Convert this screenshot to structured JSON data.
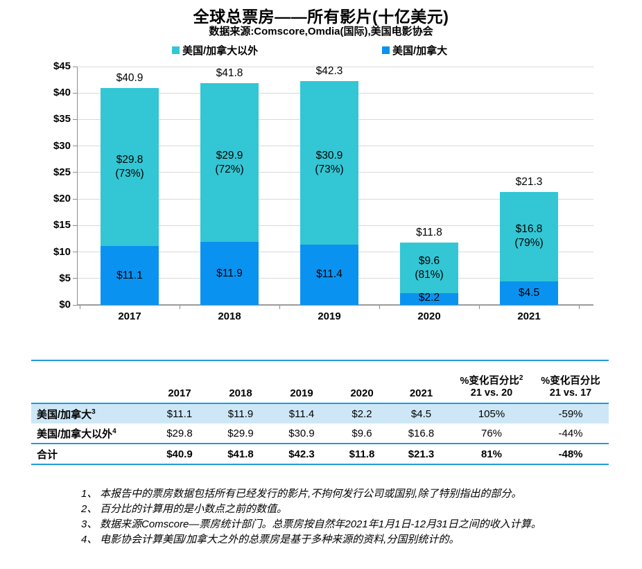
{
  "chart_data": {
    "type": "bar",
    "stacked": true,
    "title": "全球总票房——所有影片(十亿美元)",
    "subtitle": "数据来源:Comscore,Omdia(国际),美国电影协会",
    "categories": [
      "2017",
      "2018",
      "2019",
      "2020",
      "2021"
    ],
    "series": [
      {
        "name": "美国/加拿大",
        "color": "#0A92F0",
        "values": [
          11.1,
          11.9,
          11.4,
          2.2,
          4.5
        ],
        "labels": [
          "$11.1",
          "$11.9",
          "$11.4",
          "$2.2",
          "$4.5"
        ]
      },
      {
        "name": "美国/加拿大以外",
        "color": "#33C6D4",
        "values": [
          29.8,
          29.9,
          30.9,
          9.6,
          16.8
        ],
        "labels": [
          "$29.8",
          "$29.9",
          "$30.9",
          "$9.6",
          "$16.8"
        ],
        "pct_labels": [
          "(73%)",
          "(72%)",
          "(73%)",
          "(81%)",
          "(79%)"
        ]
      }
    ],
    "totals": [
      40.9,
      41.8,
      42.3,
      11.8,
      21.3
    ],
    "total_labels": [
      "$40.9",
      "$41.8",
      "$42.3",
      "$11.8",
      "$21.3"
    ],
    "xlabel": "",
    "ylabel": "",
    "ylim": [
      0,
      45
    ],
    "ytick_step": 5,
    "ytick_labels": [
      "$0",
      "$5",
      "$10",
      "$15",
      "$20",
      "$25",
      "$30",
      "$35",
      "$40",
      "$45"
    ],
    "grid": true,
    "legend_position": "top"
  },
  "legend": [
    {
      "label": "美国/加拿大以外",
      "color": "#33C6D4"
    },
    {
      "label": "美国/加拿大",
      "color": "#0A92F0"
    }
  ],
  "table": {
    "year_columns": [
      "2017",
      "2018",
      "2019",
      "2020",
      "2021"
    ],
    "pct_columns": [
      {
        "label": "%变化百分比",
        "sup": "2",
        "line2": "21 vs. 20"
      },
      {
        "label": "%变化百分比",
        "sup": "",
        "line2": "21 vs. 17"
      }
    ],
    "rows": [
      {
        "label": "美国/加拿大",
        "sup": "3",
        "values": [
          "$11.1",
          "$11.9",
          "$11.4",
          "$2.2",
          "$4.5",
          "105%",
          "-59%"
        ],
        "highlight": true,
        "bold": false
      },
      {
        "label": "美国/加拿大以外",
        "sup": "4",
        "values": [
          "$29.8",
          "$29.9",
          "$30.9",
          "$9.6",
          "$16.8",
          "76%",
          "-44%"
        ],
        "highlight": false,
        "bold": false
      },
      {
        "label": "合计",
        "sup": "",
        "values": [
          "$40.9",
          "$41.8",
          "$42.3",
          "$11.8",
          "$21.3",
          "81%",
          "-48%"
        ],
        "highlight": false,
        "bold": true
      }
    ]
  },
  "footnotes": [
    {
      "num": "1、",
      "text": "本报告中的票房数据包括所有已经发行的影片,不拘何发行公司或国别,除了特别指出的部分。"
    },
    {
      "num": "2、",
      "text": "百分比的计算用的是小数点之前的数值。"
    },
    {
      "num": "3、",
      "text": "数据来源Comscore—票房统计部门。总票房按自然年2021年1月1日-12月31日之间的收入计算。"
    },
    {
      "num": "4、",
      "text": "电影协会计算美国/加拿大之外的总票房是基于多种来源的资料,分国别统计的。"
    }
  ],
  "colors": {
    "us_canada": "#0A92F0",
    "international": "#33C6D4",
    "table_line": "#1E9CD8",
    "row_highlight": "#CDE7F7",
    "gridline": "#D9D9D9",
    "axis": "#8C8C8C",
    "text": "#000000"
  }
}
